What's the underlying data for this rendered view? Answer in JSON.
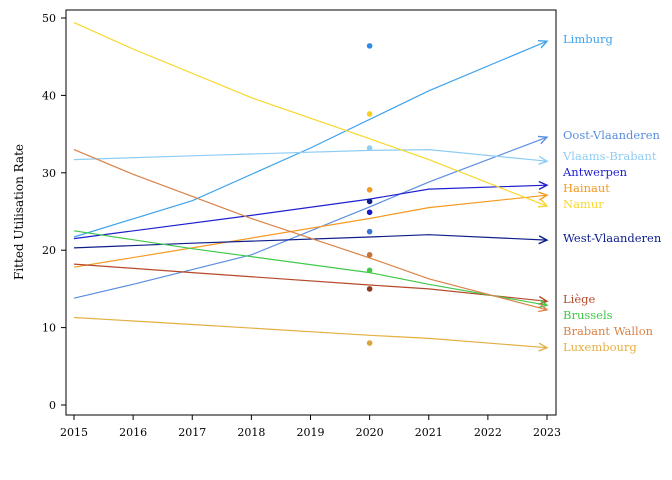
{
  "chart_data": {
    "type": "line",
    "ylabel": "Fitted Utilisation Rate",
    "xlabel": "",
    "x": [
      2015,
      2016,
      2017,
      2018,
      2019,
      2020,
      2021,
      2022,
      2023
    ],
    "xlim": [
      2015,
      2023
    ],
    "ylim": [
      0,
      50
    ],
    "yticks": [
      0,
      10,
      20,
      30,
      40,
      50
    ],
    "grid": false,
    "legend": "direct labels at line ends (right)",
    "series": [
      {
        "name": "Limburg",
        "color": "#3fa3ee",
        "line": [
          [
            2015,
            21.7
          ],
          [
            2017,
            26.4
          ],
          [
            2019,
            33.2
          ],
          [
            2021,
            40.6
          ],
          [
            2023,
            47.0
          ]
        ],
        "point": [
          2020,
          46.4
        ],
        "point_color": "#2f8be6"
      },
      {
        "name": "Oost-Vlaanderen",
        "color": "#5b8ee0",
        "line": [
          [
            2015,
            13.8
          ],
          [
            2016,
            15.6
          ],
          [
            2018,
            19.4
          ],
          [
            2020,
            25.6
          ],
          [
            2021,
            28.8
          ],
          [
            2023,
            34.6
          ]
        ],
        "point": [
          2020,
          22.4
        ],
        "point_color": "#3b73d6"
      },
      {
        "name": "Vlaams-Brabant",
        "color": "#8fcdf5",
        "line": [
          [
            2015,
            31.7
          ],
          [
            2017,
            32.2
          ],
          [
            2020,
            32.9
          ],
          [
            2021,
            33.0
          ],
          [
            2023,
            31.5
          ]
        ],
        "point": [
          2020,
          33.2
        ],
        "point_color": "#8fcdf5"
      },
      {
        "name": "Antwerpen",
        "color": "#1f1fcf",
        "line": [
          [
            2015,
            21.5
          ],
          [
            2018,
            24.5
          ],
          [
            2020,
            26.6
          ],
          [
            2021,
            27.9
          ],
          [
            2023,
            28.4
          ]
        ],
        "point": [
          2020,
          24.9
        ],
        "point_color": "#1818c8"
      },
      {
        "name": "Hainaut",
        "color": "#f59b22",
        "line": [
          [
            2015,
            17.8
          ],
          [
            2017,
            20.3
          ],
          [
            2020,
            24.1
          ],
          [
            2021,
            25.5
          ],
          [
            2023,
            27.1
          ]
        ],
        "point": [
          2020,
          27.8
        ],
        "point_color": "#f59b22"
      },
      {
        "name": "Namur",
        "color": "#f7d72c",
        "line": [
          [
            2015,
            49.4
          ],
          [
            2016,
            46.0
          ],
          [
            2018,
            39.7
          ],
          [
            2020,
            34.4
          ],
          [
            2021,
            31.7
          ],
          [
            2023,
            25.7
          ]
        ],
        "point": [
          2020,
          37.6
        ],
        "point_color": "#f7cf22"
      },
      {
        "name": "West-Vlaanderen",
        "color": "#0d1e8a",
        "line": [
          [
            2015,
            20.3
          ],
          [
            2017,
            20.9
          ],
          [
            2020,
            21.7
          ],
          [
            2021,
            22.0
          ],
          [
            2023,
            21.3
          ]
        ],
        "point": [
          2020,
          26.3
        ],
        "point_color": "#0d1e8a"
      },
      {
        "name": "Liège",
        "color": "#b5492b",
        "line": [
          [
            2015,
            18.2
          ],
          [
            2017,
            17.1
          ],
          [
            2020,
            15.5
          ],
          [
            2021,
            15.0
          ],
          [
            2023,
            13.4
          ]
        ],
        "point": [
          2020,
          15.0
        ],
        "point_color": "#8c3b1f"
      },
      {
        "name": "Brussels",
        "color": "#42c94a",
        "line": [
          [
            2015,
            22.5
          ],
          [
            2017,
            20.2
          ],
          [
            2020,
            17.1
          ],
          [
            2021,
            15.6
          ],
          [
            2023,
            12.9
          ]
        ],
        "point": [
          2020,
          17.4
        ],
        "point_color": "#42c94a"
      },
      {
        "name": "Brabant Wallon",
        "color": "#d9834a",
        "line": [
          [
            2015,
            33.0
          ],
          [
            2016,
            29.8
          ],
          [
            2018,
            24.1
          ],
          [
            2020,
            19.0
          ],
          [
            2021,
            16.3
          ],
          [
            2023,
            12.3
          ]
        ],
        "point": [
          2020,
          19.4
        ],
        "point_color": "#c97238"
      },
      {
        "name": "Luxembourg",
        "color": "#e3b043",
        "line": [
          [
            2015,
            11.3
          ],
          [
            2017,
            10.4
          ],
          [
            2020,
            9.0
          ],
          [
            2021,
            8.6
          ],
          [
            2023,
            7.4
          ]
        ],
        "point": [
          2020,
          8.0
        ],
        "point_color": "#dba33a"
      }
    ]
  }
}
